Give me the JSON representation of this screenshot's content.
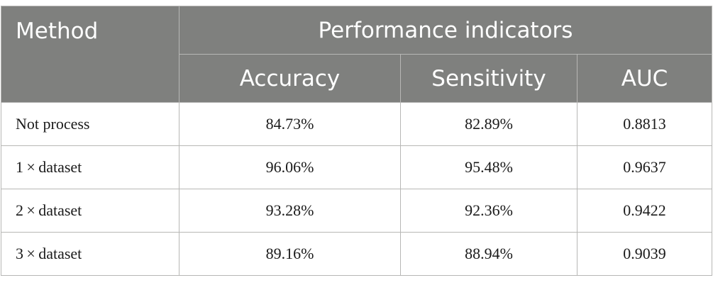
{
  "table": {
    "headers": {
      "method": "Method",
      "group": "Performance indicators",
      "columns": [
        "Accuracy",
        "Sensitivity",
        "AUC"
      ]
    },
    "rows": [
      {
        "method": "Not process",
        "accuracy": "84.73%",
        "sensitivity": "82.89%",
        "auc": "0.8813"
      },
      {
        "method": "1 × dataset",
        "accuracy": "96.06%",
        "sensitivity": "95.48%",
        "auc": "0.9637"
      },
      {
        "method": "2 × dataset",
        "accuracy": "93.28%",
        "sensitivity": "92.36%",
        "auc": "0.9422"
      },
      {
        "method": "3 × dataset",
        "accuracy": "89.16%",
        "sensitivity": "88.94%",
        "auc": "0.9039"
      }
    ]
  },
  "colors": {
    "header_background": "#7f807e",
    "header_text": "#ffffff",
    "grid_line": "#b7b7b5"
  }
}
